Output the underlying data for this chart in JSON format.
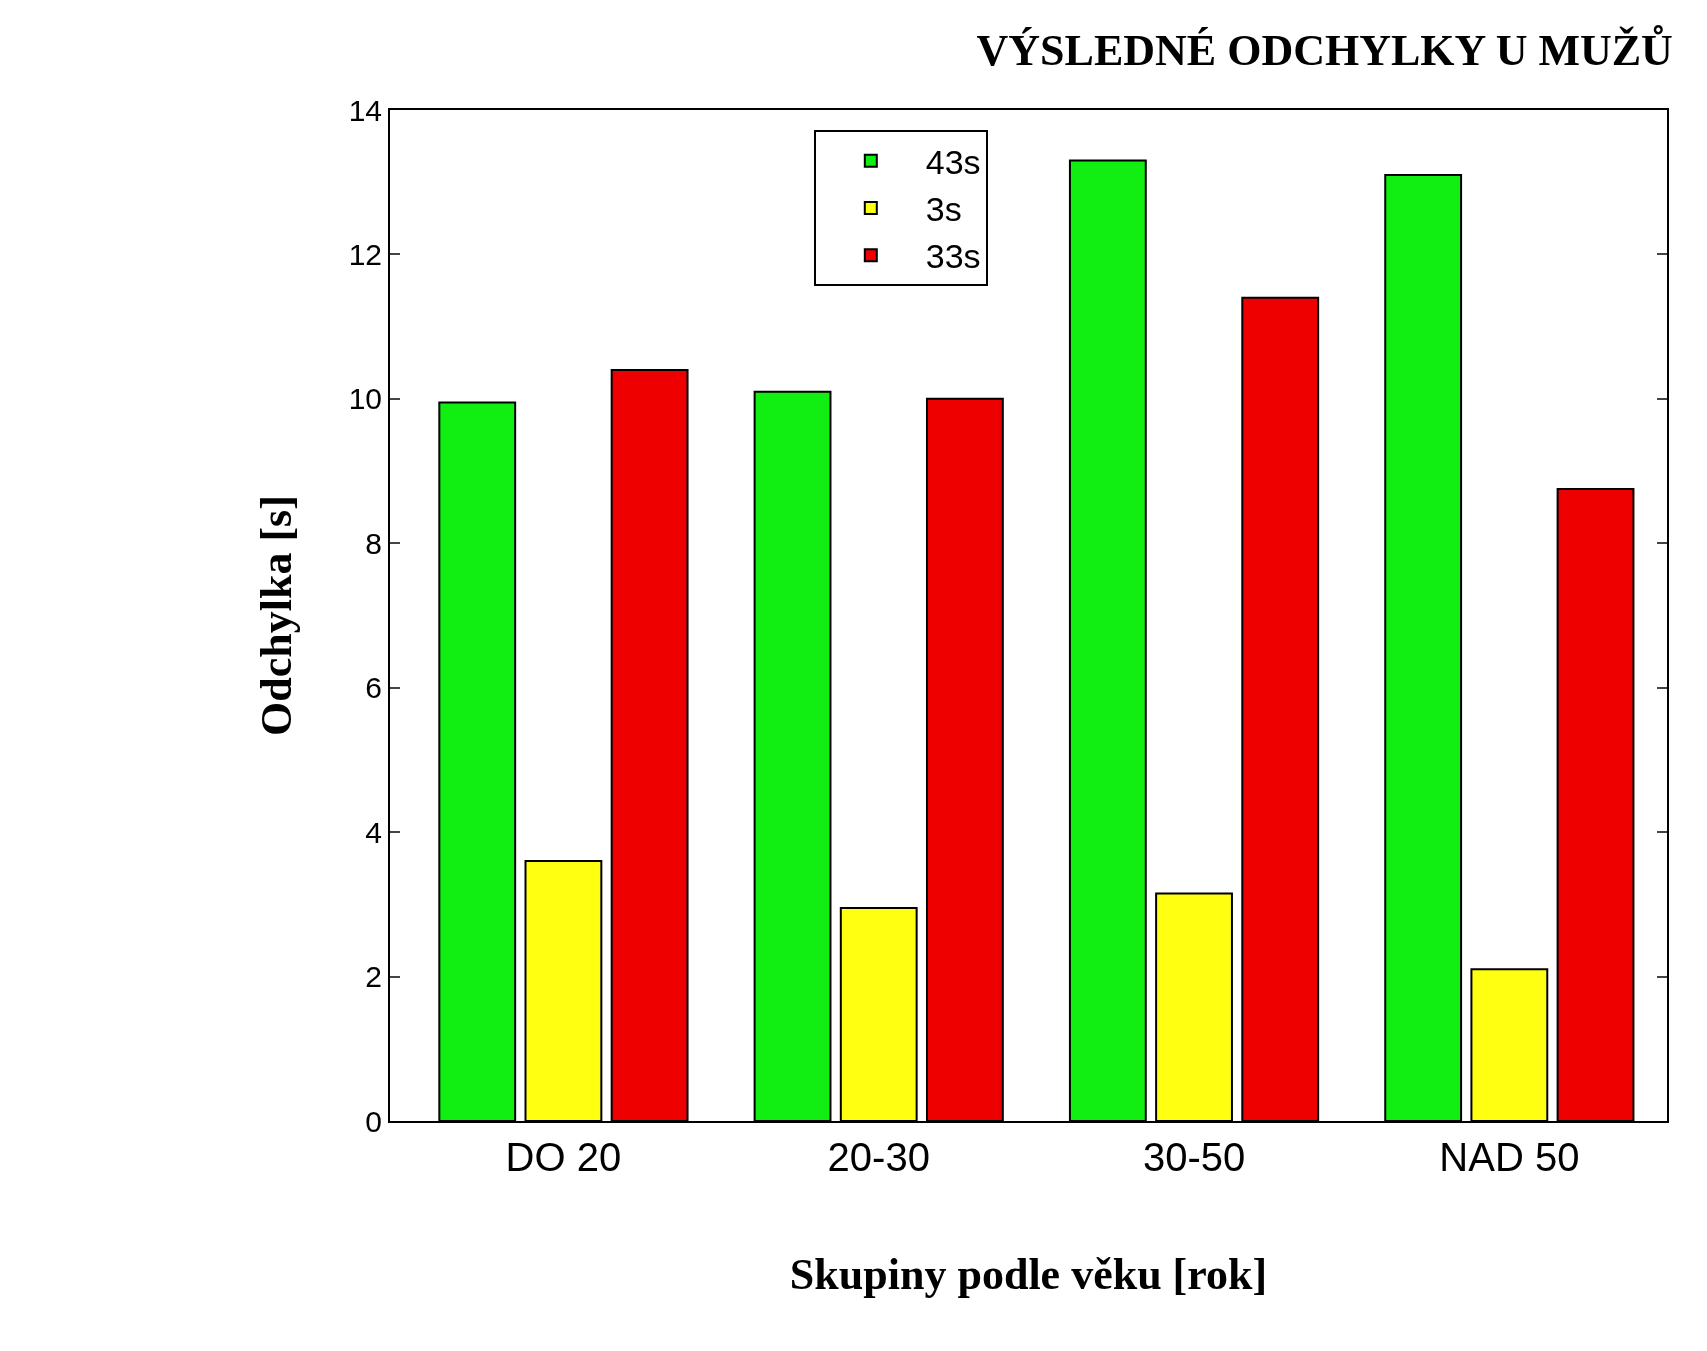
{
  "chart_data": {
    "type": "bar",
    "title": "VÝSLEDNÉ ODCHYLKY U MUŽŮ",
    "xlabel": "Skupiny podle věku [rok]",
    "ylabel": "Odchylka [s]",
    "categories": [
      "DO 20",
      "20-30",
      "30-50",
      "NAD 50"
    ],
    "series": [
      {
        "name": "43s",
        "color": "#11ee11",
        "values": [
          9.95,
          10.1,
          13.3,
          13.1
        ]
      },
      {
        "name": "3s",
        "color": "#ffff11",
        "values": [
          3.6,
          2.95,
          3.15,
          2.1
        ]
      },
      {
        "name": "33s",
        "color": "#ee0000",
        "values": [
          10.4,
          10.0,
          11.4,
          8.75
        ]
      }
    ],
    "ylim": [
      0,
      14
    ],
    "yticks": [
      0,
      2,
      4,
      6,
      8,
      10,
      12,
      14
    ],
    "grid": false,
    "legend": "top"
  }
}
